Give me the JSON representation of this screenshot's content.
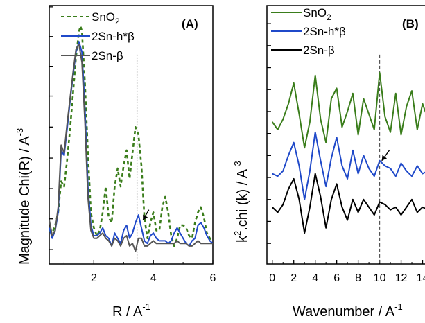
{
  "chart_data": [
    {
      "type": "line",
      "panel_label": "(A)",
      "xlabel_base": "R / A",
      "xlabel_exp": "-1",
      "ylabel_base": "Magnitude Chi(R) / A",
      "ylabel_exp": "-3",
      "xlim": [
        0.5,
        6
      ],
      "ylim": [
        0,
        1
      ],
      "xticks": [
        2,
        4,
        6
      ],
      "yticks_unlabeled": [
        0.056,
        0.175,
        0.292,
        0.41,
        0.53,
        0.65,
        0.765,
        0.88,
        0.995
      ],
      "legend_position": "top-left",
      "vertical_marker_x": 3.45,
      "arrow_annotation": {
        "from": [
          3.85,
          0.21
        ],
        "to": [
          3.65,
          0.17
        ]
      },
      "series": [
        {
          "name_base": "SnO",
          "name_sub": "2",
          "color": "#3a7d1b",
          "dash": "5,4",
          "x": [
            0.5,
            0.6,
            0.7,
            0.8,
            0.9,
            1.0,
            1.1,
            1.2,
            1.3,
            1.4,
            1.5,
            1.55,
            1.6,
            1.7,
            1.8,
            1.9,
            2.0,
            2.1,
            2.2,
            2.3,
            2.4,
            2.5,
            2.6,
            2.7,
            2.8,
            2.9,
            3.0,
            3.1,
            3.2,
            3.3,
            3.4,
            3.5,
            3.6,
            3.7,
            3.8,
            3.9,
            4.0,
            4.1,
            4.2,
            4.3,
            4.4,
            4.5,
            4.6,
            4.7,
            4.8,
            4.9,
            5.0,
            5.1,
            5.2,
            5.3,
            5.4,
            5.5,
            5.6,
            5.7,
            5.8,
            5.9,
            6.0
          ],
          "y": [
            0.13,
            0.12,
            0.15,
            0.2,
            0.32,
            0.3,
            0.4,
            0.52,
            0.66,
            0.8,
            0.9,
            0.92,
            0.9,
            0.7,
            0.43,
            0.2,
            0.14,
            0.11,
            0.13,
            0.2,
            0.3,
            0.18,
            0.16,
            0.3,
            0.37,
            0.3,
            0.38,
            0.44,
            0.33,
            0.43,
            0.53,
            0.5,
            0.38,
            0.18,
            0.1,
            0.16,
            0.2,
            0.13,
            0.13,
            0.22,
            0.26,
            0.2,
            0.11,
            0.07,
            0.1,
            0.15,
            0.15,
            0.14,
            0.11,
            0.1,
            0.16,
            0.2,
            0.22,
            0.18,
            0.12,
            0.1,
            0.09
          ]
        },
        {
          "name_base": "2Sn-h*β",
          "name_sub": "",
          "color": "#1f49c9",
          "dash": "",
          "x": [
            0.5,
            0.6,
            0.7,
            0.8,
            0.9,
            1.0,
            1.1,
            1.2,
            1.3,
            1.4,
            1.5,
            1.6,
            1.7,
            1.8,
            1.9,
            2.0,
            2.1,
            2.2,
            2.3,
            2.4,
            2.5,
            2.6,
            2.7,
            2.8,
            2.9,
            3.0,
            3.1,
            3.2,
            3.3,
            3.4,
            3.5,
            3.6,
            3.7,
            3.8,
            3.9,
            4.0,
            4.1,
            4.2,
            4.3,
            4.4,
            4.5,
            4.6,
            4.7,
            4.8,
            4.9,
            5.0,
            5.1,
            5.2,
            5.3,
            5.4,
            5.5,
            5.6,
            5.7,
            5.8,
            5.9,
            6.0
          ],
          "y": [
            0.14,
            0.1,
            0.13,
            0.2,
            0.44,
            0.42,
            0.52,
            0.63,
            0.73,
            0.82,
            0.86,
            0.82,
            0.6,
            0.3,
            0.15,
            0.11,
            0.11,
            0.12,
            0.14,
            0.11,
            0.1,
            0.07,
            0.12,
            0.1,
            0.08,
            0.13,
            0.15,
            0.1,
            0.12,
            0.16,
            0.19,
            0.14,
            0.09,
            0.08,
            0.11,
            0.12,
            0.1,
            0.09,
            0.09,
            0.09,
            0.08,
            0.09,
            0.12,
            0.14,
            0.12,
            0.1,
            0.08,
            0.07,
            0.09,
            0.1,
            0.15,
            0.16,
            0.14,
            0.11,
            0.09,
            0.08
          ]
        },
        {
          "name_base": "2Sn-β",
          "name_sub": "",
          "color": "#555555",
          "dash": "",
          "x": [
            0.5,
            0.6,
            0.7,
            0.8,
            0.9,
            1.0,
            1.1,
            1.2,
            1.3,
            1.4,
            1.5,
            1.6,
            1.7,
            1.8,
            1.9,
            2.0,
            2.1,
            2.2,
            2.3,
            2.4,
            2.5,
            2.6,
            2.7,
            2.8,
            2.9,
            3.0,
            3.1,
            3.2,
            3.3,
            3.4,
            3.5,
            3.6,
            3.7,
            3.8,
            3.9,
            4.0,
            4.1,
            4.2,
            4.3,
            4.4,
            4.5,
            4.6,
            4.7,
            4.8,
            4.9,
            5.0,
            5.1,
            5.2,
            5.3,
            5.4,
            5.5,
            5.6,
            5.7,
            5.8,
            5.9,
            6.0
          ],
          "y": [
            0.17,
            0.11,
            0.13,
            0.22,
            0.46,
            0.43,
            0.54,
            0.64,
            0.74,
            0.83,
            0.85,
            0.78,
            0.55,
            0.26,
            0.13,
            0.1,
            0.1,
            0.11,
            0.12,
            0.1,
            0.09,
            0.07,
            0.1,
            0.09,
            0.07,
            0.1,
            0.11,
            0.07,
            0.08,
            0.05,
            0.1,
            0.1,
            0.07,
            0.07,
            0.08,
            0.09,
            0.08,
            0.08,
            0.08,
            0.08,
            0.08,
            0.08,
            0.08,
            0.09,
            0.08,
            0.08,
            0.08,
            0.07,
            0.07,
            0.08,
            0.09,
            0.08,
            0.08,
            0.08,
            0.08,
            0.08
          ]
        }
      ]
    },
    {
      "type": "line",
      "panel_label": "(B)",
      "xlabel_base": "Wavenumber / A",
      "xlabel_exp": "-1",
      "ylabel_base": "k",
      "ylabel_sup": "2",
      "ylabel_rest": ".chi (k) / A",
      "ylabel_exp": "-3",
      "xlim": [
        -0.5,
        15
      ],
      "ylim": [
        0,
        1
      ],
      "xticks": [
        0,
        2,
        4,
        6,
        8,
        10,
        12,
        14
      ],
      "yticks_unlabeled": [
        0.08,
        0.165,
        0.25,
        0.335,
        0.42,
        0.505,
        0.59,
        0.675,
        0.76,
        0.845,
        0.93
      ],
      "legend_position": "top-left",
      "vertical_marker_x": 10,
      "arrow_annotation": {
        "from": [
          10.9,
          0.44
        ],
        "to": [
          10.2,
          0.4
        ]
      },
      "series": [
        {
          "name_base": "SnO",
          "name_sub": "2",
          "color": "#3a7d1b",
          "dash": "",
          "x": [
            0,
            0.5,
            1,
            1.5,
            2,
            2.5,
            3,
            3.5,
            4,
            4.5,
            5,
            5.5,
            6,
            6.5,
            7,
            7.5,
            8,
            8.5,
            9,
            9.5,
            10,
            10.5,
            11,
            11.5,
            12,
            12.5,
            13,
            13.5,
            14,
            14.5,
            15
          ],
          "y": [
            0.55,
            0.52,
            0.56,
            0.62,
            0.7,
            0.58,
            0.45,
            0.55,
            0.73,
            0.56,
            0.47,
            0.64,
            0.68,
            0.53,
            0.59,
            0.66,
            0.5,
            0.64,
            0.58,
            0.52,
            0.74,
            0.57,
            0.51,
            0.66,
            0.5,
            0.61,
            0.67,
            0.52,
            0.62,
            0.56,
            0.6
          ]
        },
        {
          "name_base": "2Sn-h*β",
          "name_sub": "",
          "color": "#1f49c9",
          "dash": "",
          "x": [
            0,
            0.5,
            1,
            1.5,
            2,
            2.5,
            3,
            3.5,
            4,
            4.5,
            5,
            5.5,
            6,
            6.5,
            7,
            7.5,
            8,
            8.5,
            9,
            9.5,
            10,
            10.5,
            11,
            11.5,
            12,
            12.5,
            13,
            13.5,
            14,
            14.5,
            15
          ],
          "y": [
            0.35,
            0.34,
            0.36,
            0.42,
            0.47,
            0.38,
            0.25,
            0.36,
            0.51,
            0.4,
            0.3,
            0.41,
            0.49,
            0.38,
            0.33,
            0.44,
            0.35,
            0.42,
            0.37,
            0.34,
            0.4,
            0.38,
            0.37,
            0.34,
            0.39,
            0.36,
            0.34,
            0.38,
            0.35,
            0.36,
            0.35
          ]
        },
        {
          "name_base": "2Sn-β",
          "name_sub": "",
          "color": "#000000",
          "dash": "",
          "x": [
            0,
            0.5,
            1,
            1.5,
            2,
            2.5,
            3,
            3.5,
            4,
            4.5,
            5,
            5.5,
            6,
            6.5,
            7,
            7.5,
            8,
            8.5,
            9,
            9.5,
            10,
            10.5,
            11,
            11.5,
            12,
            12.5,
            13,
            13.5,
            14,
            14.5,
            15
          ],
          "y": [
            0.22,
            0.2,
            0.23,
            0.29,
            0.33,
            0.25,
            0.12,
            0.22,
            0.35,
            0.26,
            0.14,
            0.25,
            0.31,
            0.22,
            0.17,
            0.25,
            0.2,
            0.25,
            0.22,
            0.19,
            0.24,
            0.23,
            0.21,
            0.22,
            0.19,
            0.22,
            0.25,
            0.2,
            0.22,
            0.21,
            0.22
          ]
        }
      ]
    }
  ]
}
